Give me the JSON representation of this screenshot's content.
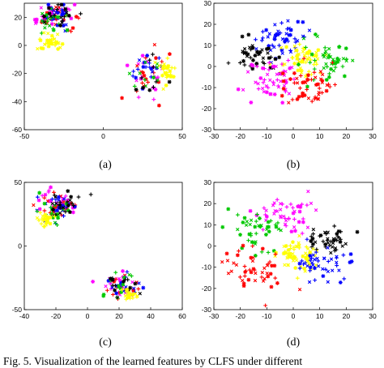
{
  "caption": "Fig. 5.   Visualization of the learned features by CLFS under different",
  "chart_data": [
    {
      "type": "scatter",
      "label": "(a)",
      "xlim": [
        -50,
        50
      ],
      "ylim": [
        -60,
        30
      ],
      "xticks": [
        "-50",
        "0",
        "50"
      ],
      "yticks": [
        "20",
        "0",
        "-20",
        "-40",
        "-60"
      ],
      "ytick_values": [
        20,
        0,
        -20,
        -40,
        -60
      ],
      "xtick_values": [
        -50,
        0,
        50
      ],
      "seed": 11,
      "clusters": [
        {
          "color": "#ff00ff",
          "cx": -32,
          "cy": 22,
          "sx": 6,
          "sy": 4,
          "n": 28
        },
        {
          "color": "#ff0000",
          "cx": -30,
          "cy": 20,
          "sx": 6,
          "sy": 5,
          "n": 24
        },
        {
          "color": "#0000ff",
          "cx": -29,
          "cy": 21,
          "sx": 6,
          "sy": 5,
          "n": 24
        },
        {
          "color": "#00c800",
          "cx": -31,
          "cy": 19,
          "sx": 6,
          "sy": 5,
          "n": 20
        },
        {
          "color": "#000000",
          "cx": -28,
          "cy": 22,
          "sx": 6,
          "sy": 4,
          "n": 20
        },
        {
          "color": "#ffff00",
          "cx": -33,
          "cy": 3,
          "sx": 4,
          "sy": 3,
          "n": 34
        },
        {
          "color": "#ff00ff",
          "cx": 30,
          "cy": -20,
          "sx": 6,
          "sy": 8,
          "n": 18
        },
        {
          "color": "#ff0000",
          "cx": 28,
          "cy": -22,
          "sx": 6,
          "sy": 9,
          "n": 18
        },
        {
          "color": "#0000ff",
          "cx": 29,
          "cy": -20,
          "sx": 5,
          "sy": 6,
          "n": 18
        },
        {
          "color": "#00c800",
          "cx": 27,
          "cy": -18,
          "sx": 6,
          "sy": 8,
          "n": 10
        },
        {
          "color": "#000000",
          "cx": 29,
          "cy": -24,
          "sx": 5,
          "sy": 8,
          "n": 10
        },
        {
          "color": "#ffff00",
          "cx": 40,
          "cy": -19,
          "sx": 3,
          "sy": 4,
          "n": 28
        }
      ]
    },
    {
      "type": "scatter",
      "label": "(b)",
      "xlim": [
        -30,
        30
      ],
      "ylim": [
        -30,
        30
      ],
      "xticks": [
        "-30",
        "-20",
        "-10",
        "0",
        "10",
        "20",
        "30"
      ],
      "yticks": [
        "30",
        "20",
        "10",
        "0",
        "-10",
        "-20",
        "-30"
      ],
      "ytick_values": [
        30,
        20,
        10,
        0,
        -10,
        -20,
        -30
      ],
      "xtick_values": [
        -30,
        -20,
        -10,
        0,
        10,
        20,
        30
      ],
      "seed": 23,
      "clusters": [
        {
          "color": "#0000ff",
          "cx": -3,
          "cy": 12,
          "sx": 5,
          "sy": 4,
          "n": 55
        },
        {
          "color": "#000000",
          "cx": -15,
          "cy": 5,
          "sx": 4,
          "sy": 4,
          "n": 42
        },
        {
          "color": "#ffff00",
          "cx": 4,
          "cy": 3,
          "sx": 3.5,
          "sy": 4,
          "n": 60
        },
        {
          "color": "#00c800",
          "cx": 13,
          "cy": 3,
          "sx": 4,
          "sy": 5,
          "n": 50
        },
        {
          "color": "#ff00ff",
          "cx": -8,
          "cy": -6,
          "sx": 5,
          "sy": 5,
          "n": 55
        },
        {
          "color": "#ff0000",
          "cx": 6,
          "cy": -10,
          "sx": 5,
          "sy": 5,
          "n": 55
        }
      ]
    },
    {
      "type": "scatter",
      "label": "(c)",
      "xlim": [
        -40,
        60
      ],
      "ylim": [
        -50,
        50
      ],
      "xticks": [
        "-40",
        "-20",
        "0",
        "20",
        "40",
        "60"
      ],
      "yticks": [
        "50",
        "0",
        "-50"
      ],
      "ytick_values": [
        50,
        0,
        -50
      ],
      "xtick_values": [
        -40,
        -20,
        0,
        20,
        40,
        60
      ],
      "seed": 37,
      "clusters": [
        {
          "color": "#ff00ff",
          "cx": -18,
          "cy": 33,
          "sx": 6,
          "sy": 5,
          "n": 28
        },
        {
          "color": "#ff0000",
          "cx": -20,
          "cy": 30,
          "sx": 6,
          "sy": 5,
          "n": 24
        },
        {
          "color": "#0000ff",
          "cx": -17,
          "cy": 31,
          "sx": 6,
          "sy": 6,
          "n": 24
        },
        {
          "color": "#00c800",
          "cx": -19,
          "cy": 29,
          "sx": 6,
          "sy": 6,
          "n": 20
        },
        {
          "color": "#000000",
          "cx": -16,
          "cy": 32,
          "sx": 6,
          "sy": 5,
          "n": 22
        },
        {
          "color": "#ffff00",
          "cx": -27,
          "cy": 20,
          "sx": 3,
          "sy": 3,
          "n": 28
        },
        {
          "color": "#ff00ff",
          "cx": 22,
          "cy": -30,
          "sx": 6,
          "sy": 5,
          "n": 18
        },
        {
          "color": "#ff0000",
          "cx": 21,
          "cy": -32,
          "sx": 6,
          "sy": 5,
          "n": 16
        },
        {
          "color": "#0000ff",
          "cx": 23,
          "cy": -31,
          "sx": 6,
          "sy": 5,
          "n": 16
        },
        {
          "color": "#00c800",
          "cx": 20,
          "cy": -30,
          "sx": 6,
          "sy": 5,
          "n": 14
        },
        {
          "color": "#000000",
          "cx": 24,
          "cy": -29,
          "sx": 6,
          "sy": 5,
          "n": 14
        },
        {
          "color": "#ffff00",
          "cx": 27,
          "cy": -39,
          "sx": 3,
          "sy": 3,
          "n": 22
        }
      ]
    },
    {
      "type": "scatter",
      "label": "(d)",
      "xlim": [
        -30,
        30
      ],
      "ylim": [
        -30,
        30
      ],
      "xticks": [
        "-30",
        "-20",
        "-10",
        "0",
        "10",
        "20",
        "30"
      ],
      "yticks": [
        "30",
        "20",
        "10",
        "0",
        "-10",
        "-20",
        "-30"
      ],
      "ytick_values": [
        30,
        20,
        10,
        0,
        -10,
        -20,
        -30
      ],
      "xtick_values": [
        -30,
        -20,
        -10,
        0,
        10,
        20,
        30
      ],
      "seed": 53,
      "clusters": [
        {
          "color": "#ff00ff",
          "cx": -3,
          "cy": 16,
          "sx": 6,
          "sy": 5,
          "n": 50
        },
        {
          "color": "#00c800",
          "cx": -14,
          "cy": 8,
          "sx": 5,
          "sy": 5,
          "n": 45
        },
        {
          "color": "#000000",
          "cx": 13,
          "cy": 3,
          "sx": 5,
          "sy": 3,
          "n": 45
        },
        {
          "color": "#ffff00",
          "cx": 2,
          "cy": -5,
          "sx": 4,
          "sy": 4,
          "n": 60
        },
        {
          "color": "#ff0000",
          "cx": -14,
          "cy": -10,
          "sx": 6,
          "sy": 6,
          "n": 50
        },
        {
          "color": "#0000ff",
          "cx": 13,
          "cy": -9,
          "sx": 6,
          "sy": 5,
          "n": 45
        }
      ]
    }
  ]
}
